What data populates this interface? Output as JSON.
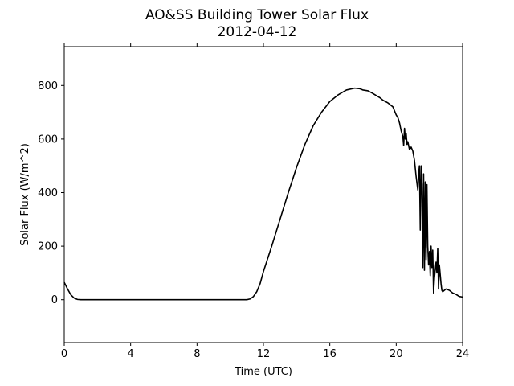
{
  "chart_data": {
    "type": "line",
    "title": "AO&SS Building Tower Solar Flux",
    "subtitle": "2012-04-12",
    "xlabel": "Time (UTC)",
    "ylabel": "Solar Flux (W/m^2)",
    "xlim": [
      0,
      24
    ],
    "ylim": [
      -160,
      945
    ],
    "xticks": [
      0,
      4,
      8,
      12,
      16,
      20,
      24
    ],
    "yticks": [
      0,
      200,
      400,
      600,
      800
    ],
    "grid": false,
    "line_color": "#000000",
    "series": [
      {
        "x": [
          0,
          0.2,
          0.4,
          0.6,
          0.8,
          1.0,
          1.5,
          2,
          3,
          4,
          5,
          6,
          7,
          8,
          9,
          10,
          10.5,
          11.0,
          11.2,
          11.4,
          11.6,
          11.8,
          12.0,
          12.5,
          13,
          13.5,
          14,
          14.5,
          15,
          15.5,
          16,
          16.5,
          17,
          17.5,
          17.8,
          18,
          18.3,
          18.6,
          19,
          19.2,
          19.5,
          19.8,
          20,
          20.1,
          20.2,
          20.3,
          20.4,
          20.45,
          20.5,
          20.55,
          20.6,
          20.65,
          20.7,
          20.8,
          20.9,
          21.0,
          21.1,
          21.2,
          21.3,
          21.35,
          21.4,
          21.45,
          21.5,
          21.55,
          21.6,
          21.65,
          21.7,
          21.75,
          21.8,
          21.85,
          21.9,
          21.95,
          22.0,
          22.05,
          22.1,
          22.15,
          22.2,
          22.25,
          22.3,
          22.35,
          22.4,
          22.45,
          22.5,
          22.55,
          22.6,
          22.65,
          22.7,
          22.75,
          22.8,
          23.0,
          23.2,
          23.4,
          23.6,
          23.8,
          24
        ],
        "y": [
          65,
          40,
          18,
          6,
          1,
          0,
          0,
          0,
          0,
          0,
          0,
          0,
          0,
          0,
          0,
          0,
          0,
          0,
          3,
          12,
          30,
          60,
          105,
          200,
          300,
          400,
          495,
          580,
          650,
          700,
          740,
          765,
          783,
          790,
          788,
          783,
          780,
          770,
          755,
          745,
          735,
          720,
          690,
          680,
          660,
          630,
          610,
          575,
          640,
          600,
          620,
          580,
          590,
          560,
          570,
          555,
          520,
          460,
          410,
          470,
          500,
          260,
          500,
          430,
          120,
          470,
          110,
          440,
          150,
          430,
          200,
          130,
          180,
          90,
          200,
          120,
          185,
          25,
          80,
          110,
          140,
          100,
          190,
          40,
          130,
          95,
          60,
          35,
          30,
          40,
          35,
          25,
          20,
          12,
          10
        ]
      }
    ]
  }
}
